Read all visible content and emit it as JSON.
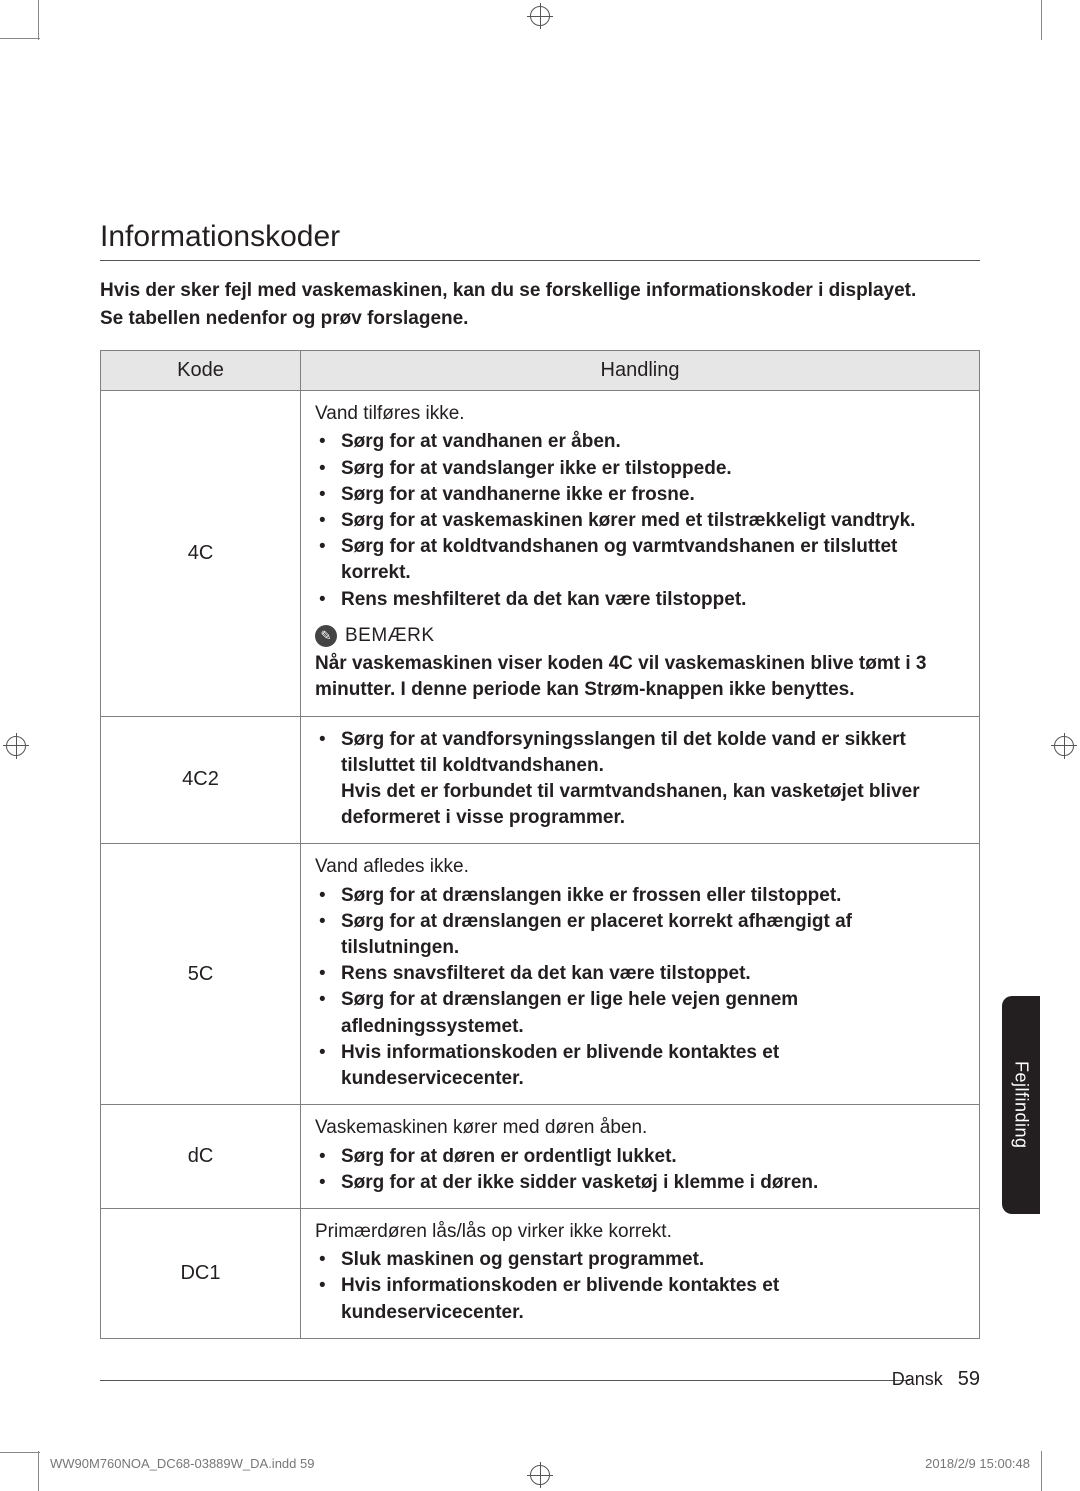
{
  "section_title": "Informationskoder",
  "intro_line1": "Hvis der sker fejl med vaskemaskinen, kan du se forskellige informationskoder i displayet.",
  "intro_line2": "Se tabellen nedenfor og prøv forslagene.",
  "table": {
    "header_code": "Kode",
    "header_action": "Handling",
    "rows": [
      {
        "code": "4C",
        "lead": "Vand tilføres ikke.",
        "bullets": [
          "Sørg for at vandhanen er åben.",
          "Sørg for at vandslanger ikke er tilstoppede.",
          "Sørg for at vandhanerne ikke er frosne.",
          "Sørg for at vaskemaskinen kører med et tilstrækkeligt vandtryk.",
          "Sørg for at koldtvandshanen og varmtvandshanen er tilsluttet korrekt.",
          "Rens meshfilteret da det kan være tilstoppet."
        ],
        "note_label": "BEMÆRK",
        "note_body": "Når vaskemaskinen viser koden 4C vil vaskemaskinen blive tømt i 3 minutter. I denne periode kan Strøm-knappen ikke benyttes."
      },
      {
        "code": "4C2",
        "lead": "",
        "bullets": [
          "Sørg for at vandforsyningsslangen til det kolde vand er sikkert tilsluttet til koldtvandshanen.\nHvis det er forbundet til varmtvandshanen, kan vasketøjet bliver deformeret i visse programmer."
        ]
      },
      {
        "code": "5C",
        "lead": "Vand afledes ikke.",
        "bullets": [
          "Sørg for at drænslangen ikke er frossen eller tilstoppet.",
          "Sørg for at drænslangen er placeret korrekt afhængigt af tilslutningen.",
          "Rens snavsfilteret da det kan være tilstoppet.",
          "Sørg for at drænslangen er lige hele vejen gennem afledningssystemet.",
          "Hvis informationskoden er blivende kontaktes et kundeservicecenter."
        ]
      },
      {
        "code": "dC",
        "lead": "Vaskemaskinen kører med døren åben.",
        "bullets": [
          "Sørg for at døren er ordentligt lukket.",
          "Sørg for at der ikke sidder vasketøj i klemme i døren."
        ]
      },
      {
        "code": "DC1",
        "lead": "Primærdøren lås/lås op virker ikke korrekt.",
        "bullets": [
          "Sluk maskinen og genstart programmet.",
          "Hvis informationskoden er blivende kontaktes et kundeservicecenter."
        ]
      }
    ]
  },
  "side_tab": "Fejlfinding",
  "footer": {
    "language": "Dansk",
    "page_number": "59"
  },
  "print_meta": {
    "left": "WW90M760NOA_DC68-03889W_DA.indd   59",
    "right": "2018/2/9   15:00:48"
  },
  "colors": {
    "text": "#231f20",
    "border": "#808080",
    "header_bg": "#e6e6e6",
    "tab_bg": "#231f20"
  }
}
